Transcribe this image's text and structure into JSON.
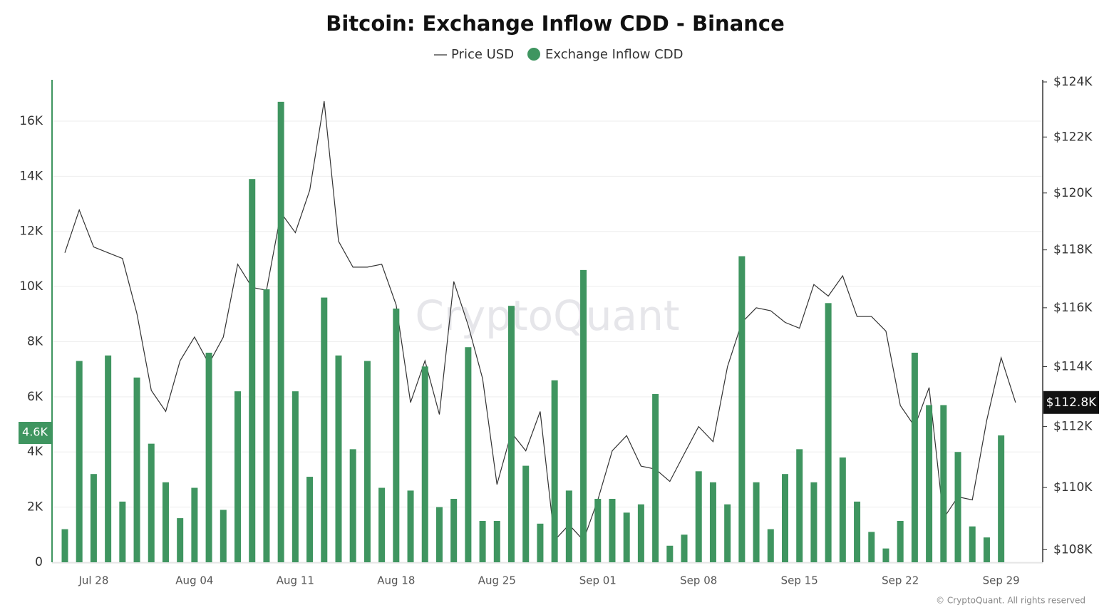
{
  "chart_data": {
    "type": "bar",
    "title": "Bitcoin: Exchange Inflow CDD - Binance",
    "watermark": "CryptoQuant",
    "source": "© CryptoQuant. All rights reserved",
    "categories": [
      null,
      null,
      "Jul 28",
      null,
      null,
      null,
      null,
      null,
      null,
      "Aug 04",
      null,
      null,
      null,
      null,
      null,
      null,
      "Aug 11",
      null,
      null,
      null,
      null,
      null,
      null,
      "Aug 18",
      null,
      null,
      null,
      null,
      null,
      null,
      "Aug 25",
      null,
      null,
      null,
      null,
      null,
      null,
      "Sep 01",
      null,
      null,
      null,
      null,
      null,
      null,
      "Sep 08",
      null,
      null,
      null,
      null,
      null,
      null,
      "Sep 15",
      null,
      null,
      null,
      null,
      null,
      null,
      "Sep 22",
      null,
      null,
      null,
      null,
      null,
      null,
      "Sep 29",
      null
    ],
    "series": [
      {
        "name": "Price USD",
        "type": "line",
        "axis": "y2",
        "color": "#333333",
        "values": [
          117900,
          119400,
          118100,
          117900,
          117700,
          115800,
          113200,
          112500,
          114200,
          115000,
          114100,
          115000,
          117500,
          116700,
          116600,
          119300,
          118600,
          120100,
          123300,
          118300,
          117400,
          117400,
          117500,
          116100,
          112800,
          114200,
          112400,
          116900,
          115400,
          113600,
          110100,
          111800,
          111200,
          112500,
          108300,
          108800,
          108300,
          109600,
          111200,
          111700,
          110700,
          110600,
          110200,
          111100,
          112000,
          111500,
          114000,
          115500,
          116000,
          115900,
          115500,
          115300,
          116800,
          116400,
          117100,
          115700,
          115700,
          115200,
          112700,
          112000,
          113300,
          109000,
          109700,
          109600,
          112200,
          114300,
          112800
        ],
        "value_labels": [
          null,
          null,
          null,
          null,
          null,
          null,
          null,
          null,
          null,
          null,
          null,
          null,
          null,
          null,
          null,
          null,
          null,
          null,
          null,
          null,
          null,
          null,
          null,
          null,
          null,
          null,
          null,
          null,
          null,
          null,
          null,
          null,
          null,
          null,
          null,
          null,
          null,
          null,
          null,
          null,
          null,
          null,
          null,
          null,
          null,
          null,
          null,
          null,
          null,
          null,
          null,
          null,
          null,
          null,
          null,
          null,
          null,
          null,
          null,
          null,
          null,
          null,
          null,
          null,
          null,
          null,
          "$112.8K"
        ]
      },
      {
        "name": "Exchange Inflow CDD",
        "type": "bar",
        "color": "#3f9560",
        "values": [
          1200,
          7300,
          3200,
          7500,
          2200,
          6700,
          4300,
          2900,
          1600,
          2700,
          7600,
          1900,
          6200,
          13900,
          9900,
          16700,
          6200,
          3100,
          9600,
          7500,
          4100,
          7300,
          2700,
          9200,
          2600,
          7100,
          2000,
          2300,
          7800,
          1500,
          1500,
          9300,
          3500,
          1400,
          6600,
          2600,
          10600,
          2300,
          2300,
          1800,
          2100,
          6100,
          600,
          1000,
          3300,
          2900,
          2100,
          11100,
          2900,
          1200,
          3200,
          4100,
          2900,
          9400,
          3800,
          2200,
          1100,
          500,
          1500,
          7600,
          5700,
          5700,
          4000,
          1300,
          900,
          4600,
          null
        ],
        "value_labels": [
          null,
          null,
          null,
          null,
          null,
          null,
          null,
          null,
          null,
          null,
          null,
          null,
          null,
          null,
          null,
          null,
          null,
          null,
          null,
          null,
          null,
          null,
          null,
          null,
          null,
          null,
          null,
          null,
          null,
          null,
          null,
          null,
          null,
          null,
          null,
          null,
          null,
          null,
          null,
          null,
          null,
          null,
          null,
          null,
          null,
          null,
          null,
          null,
          null,
          null,
          null,
          null,
          null,
          null,
          null,
          null,
          null,
          null,
          null,
          null,
          null,
          null,
          null,
          null,
          null,
          "4.6K",
          null
        ]
      }
    ],
    "ylim": [
      0,
      17420
    ],
    "yticks": [
      0,
      {
        "value": 2000,
        "label": "2K"
      },
      {
        "value": 4000,
        "label": "4K"
      },
      {
        "value": 6000,
        "label": "6K"
      },
      {
        "value": 8000,
        "label": "8K"
      },
      {
        "value": 10000,
        "label": "10K"
      },
      {
        "value": 12000,
        "label": "12K"
      },
      {
        "value": 14000,
        "label": "14K"
      },
      {
        "value": 16000,
        "label": "16K"
      }
    ],
    "y2lim": [
      107600,
      124000
    ],
    "y2log": true,
    "y2ticks": [
      {
        "value": 108000,
        "label": "$108K"
      },
      {
        "value": 110000,
        "label": "$110K"
      },
      {
        "value": 112000,
        "label": "$112K"
      },
      {
        "value": 114000,
        "label": "$114K"
      },
      {
        "value": 116000,
        "label": "$116K"
      },
      {
        "value": 118000,
        "label": "$118K"
      },
      {
        "value": 120000,
        "label": "$120K"
      },
      {
        "value": 122000,
        "label": "$122K"
      },
      {
        "value": 124000,
        "label": "$124K"
      }
    ],
    "grid": true
  }
}
